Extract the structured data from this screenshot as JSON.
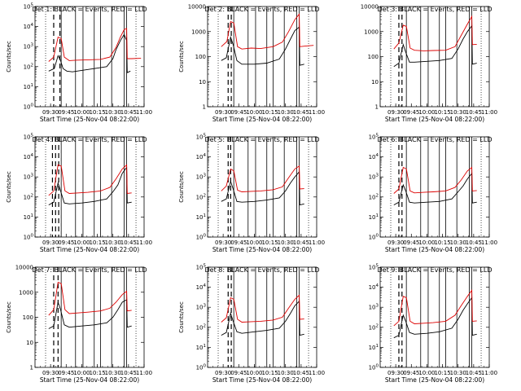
{
  "panel_grid": {
    "rows": 3,
    "cols": 3
  },
  "colors": {
    "events": "#000000",
    "lld": "#dd0000",
    "axes": "#000000",
    "background": "#ffffff"
  },
  "chart_data": [
    {
      "type": "line",
      "title": "Det 1: BLACK = Events, RED = LLD",
      "ylabel": "Counts/sec",
      "xlabel": "Start Time (25-Nov-04 08:22:00)",
      "x_ticks": [
        "09:30",
        "09:45",
        "10:00",
        "10:15",
        "10:30",
        "10:45",
        "11:00"
      ],
      "y_scale": "log",
      "y_ticks": [
        "10^0",
        "10^1",
        "10^2",
        "10^3",
        "10^4",
        "10^5"
      ],
      "ylim": [
        1,
        100000
      ],
      "grid": false,
      "vlines_dotted_hours": [
        9.42,
        10.87
      ],
      "vlines_dashed_hours": [
        9.55,
        9.65
      ],
      "vlines_solid_hours": [
        9.67,
        9.9,
        10.02,
        10.2,
        10.3,
        10.48,
        10.68,
        10.72
      ],
      "series": [
        {
          "name": "Events",
          "x_hours": [
            9.47,
            9.56,
            9.62,
            9.66,
            9.7,
            9.76,
            9.85,
            10.0,
            10.2,
            10.4,
            10.5,
            10.55,
            10.62,
            10.68,
            10.72,
            10.73,
            10.78
          ],
          "values": [
            60,
            80,
            350,
            200,
            80,
            60,
            55,
            65,
            80,
            100,
            250,
            700,
            2000,
            4000,
            2000,
            50,
            60
          ]
        },
        {
          "name": "LLD",
          "x_hours": [
            9.47,
            9.55,
            9.62,
            9.67,
            9.72,
            9.8,
            9.9,
            10.1,
            10.3,
            10.45,
            10.55,
            10.62,
            10.68,
            10.72,
            10.73,
            10.8,
            10.95
          ],
          "values": [
            180,
            300,
            3000,
            2500,
            300,
            200,
            210,
            220,
            230,
            300,
            900,
            3000,
            7000,
            8000,
            250,
            250,
            260
          ]
        }
      ]
    },
    {
      "type": "line",
      "title": "Det 2: BLACK = Events, RED = LLD",
      "ylabel": "Counts/sec",
      "xlabel": "Start Time (25-Nov-04 08:22:00)",
      "x_ticks": [
        "09:30",
        "09:45",
        "10:00",
        "10:15",
        "10:30",
        "10:45",
        "11:00"
      ],
      "y_scale": "log",
      "y_ticks": [
        "1",
        "10",
        "100",
        "1000",
        "10000"
      ],
      "ylim": [
        1,
        10000
      ],
      "grid": false,
      "vlines_dotted_hours": [
        9.42,
        10.87
      ],
      "vlines_dashed_hours": [
        9.58,
        9.63
      ],
      "vlines_solid_hours": [
        9.67,
        9.9,
        10.02,
        10.2,
        10.3,
        10.48,
        10.68,
        10.72
      ],
      "series": [
        {
          "name": "Events",
          "x_hours": [
            9.47,
            9.55,
            9.62,
            9.66,
            9.72,
            9.8,
            10.0,
            10.2,
            10.4,
            10.5,
            10.58,
            10.65,
            10.72,
            10.73,
            10.8
          ],
          "values": [
            70,
            90,
            600,
            300,
            70,
            50,
            50,
            55,
            80,
            200,
            500,
            1100,
            1500,
            45,
            50
          ]
        },
        {
          "name": "LLD",
          "x_hours": [
            9.47,
            9.56,
            9.62,
            9.67,
            9.73,
            9.8,
            9.95,
            10.1,
            10.3,
            10.45,
            10.55,
            10.65,
            10.72,
            10.73,
            10.8,
            10.95
          ],
          "values": [
            250,
            400,
            2500,
            2200,
            250,
            200,
            220,
            210,
            250,
            380,
            1000,
            3000,
            5000,
            250,
            260,
            280
          ]
        }
      ]
    },
    {
      "type": "line",
      "title": "Det 3: BLACK = Events, RED = LLD",
      "ylabel": "",
      "xlabel": "Start Time (25-Nov-04 08:22:00)",
      "x_ticks": [
        "09:30",
        "09:45",
        "10:00",
        "10:15",
        "10:30",
        "10:45",
        "11:00"
      ],
      "y_scale": "log",
      "y_ticks": [
        "1",
        "10",
        "100",
        "1000",
        "10000"
      ],
      "ylim": [
        1,
        10000
      ],
      "grid": false,
      "vlines_dotted_hours": [
        9.42,
        10.87
      ],
      "vlines_dashed_hours": [
        9.55,
        9.6
      ],
      "vlines_solid_hours": [
        9.67,
        9.9,
        10.02,
        10.2,
        10.3,
        10.48,
        10.68,
        10.72
      ],
      "series": [
        {
          "name": "Events",
          "x_hours": [
            9.47,
            9.55,
            9.62,
            9.66,
            9.72,
            9.8,
            10.0,
            10.2,
            10.4,
            10.5,
            10.58,
            10.65,
            10.72,
            10.73,
            10.8
          ],
          "values": [
            40,
            55,
            300,
            150,
            60,
            60,
            65,
            70,
            85,
            200,
            500,
            1000,
            1700,
            50,
            55
          ]
        },
        {
          "name": "LLD",
          "x_hours": [
            9.47,
            9.55,
            9.62,
            9.67,
            9.73,
            9.8,
            9.95,
            10.1,
            10.3,
            10.45,
            10.55,
            10.65,
            10.72,
            10.73,
            10.8
          ],
          "values": [
            200,
            350,
            1800,
            1600,
            220,
            180,
            170,
            175,
            180,
            250,
            700,
            2000,
            4000,
            300,
            310
          ]
        }
      ]
    },
    {
      "type": "line",
      "title": "Det 4: BLACK = Events, RED = LLD",
      "ylabel": "Counts/sec",
      "xlabel": "Start Time (25-Nov-04 08:22:00)",
      "x_ticks": [
        "09:30",
        "09:45",
        "10:00",
        "10:15",
        "10:30",
        "10:45",
        "11:00"
      ],
      "y_scale": "log",
      "y_ticks": [
        "10^0",
        "10^1",
        "10^2",
        "10^3",
        "10^4",
        "10^5"
      ],
      "ylim": [
        1,
        100000
      ],
      "grid": false,
      "vlines_dotted_hours": [
        9.42,
        10.87
      ],
      "vlines_dashed_hours": [
        9.53,
        9.58,
        9.63
      ],
      "vlines_solid_hours": [
        9.67,
        9.9,
        10.02,
        10.2,
        10.3,
        10.48,
        10.68,
        10.72
      ],
      "series": [
        {
          "name": "Events",
          "x_hours": [
            9.47,
            9.55,
            9.62,
            9.66,
            9.72,
            9.8,
            10.0,
            10.2,
            10.4,
            10.5,
            10.58,
            10.65,
            10.72,
            10.73,
            10.8
          ],
          "values": [
            40,
            55,
            500,
            200,
            50,
            45,
            50,
            60,
            80,
            180,
            400,
            1500,
            3000,
            50,
            55
          ]
        },
        {
          "name": "LLD",
          "x_hours": [
            9.47,
            9.55,
            9.62,
            9.67,
            9.73,
            9.8,
            9.95,
            10.1,
            10.3,
            10.45,
            10.55,
            10.65,
            10.72,
            10.73,
            10.8
          ],
          "values": [
            120,
            200,
            4000,
            3500,
            200,
            150,
            160,
            170,
            200,
            300,
            800,
            2500,
            4000,
            150,
            160
          ]
        }
      ]
    },
    {
      "type": "line",
      "title": "Det 5: BLACK = Events, RED = LLD",
      "ylabel": "Counts/sec",
      "xlabel": "Start Time (25-Nov-04 08:22:00)",
      "x_ticks": [
        "09:30",
        "09:45",
        "10:00",
        "10:15",
        "10:30",
        "10:45",
        "11:00"
      ],
      "y_scale": "log",
      "y_ticks": [
        "10^0",
        "10^1",
        "10^2",
        "10^3",
        "10^4",
        "10^5"
      ],
      "ylim": [
        1,
        100000
      ],
      "grid": false,
      "vlines_dotted_hours": [
        9.42,
        10.87
      ],
      "vlines_dashed_hours": [
        9.58,
        9.62
      ],
      "vlines_solid_hours": [
        9.67,
        9.9,
        10.02,
        10.2,
        10.3,
        10.48,
        10.68,
        10.72
      ],
      "series": [
        {
          "name": "Events",
          "x_hours": [
            9.47,
            9.55,
            9.62,
            9.66,
            9.72,
            9.8,
            10.0,
            10.2,
            10.4,
            10.5,
            10.58,
            10.65,
            10.72,
            10.73,
            10.8
          ],
          "values": [
            60,
            80,
            600,
            250,
            60,
            55,
            60,
            70,
            90,
            200,
            500,
            1000,
            1800,
            40,
            45
          ]
        },
        {
          "name": "LLD",
          "x_hours": [
            9.47,
            9.55,
            9.62,
            9.67,
            9.73,
            9.8,
            9.95,
            10.1,
            10.3,
            10.45,
            10.55,
            10.65,
            10.72,
            10.73,
            10.8
          ],
          "values": [
            200,
            350,
            2500,
            2000,
            220,
            180,
            190,
            200,
            230,
            320,
            900,
            2500,
            3500,
            250,
            260
          ]
        }
      ]
    },
    {
      "type": "line",
      "title": "Det 6: BLACK = Events, RED = LLD",
      "ylabel": "",
      "xlabel": "Start Time (25-Nov-04 08:22:00)",
      "x_ticks": [
        "09:30",
        "09:45",
        "10:00",
        "10:15",
        "10:30",
        "10:45",
        "11:00"
      ],
      "y_scale": "log",
      "y_ticks": [
        "10^0",
        "10^1",
        "10^2",
        "10^3",
        "10^4",
        "10^5"
      ],
      "ylim": [
        1,
        100000
      ],
      "grid": false,
      "vlines_dotted_hours": [
        9.42,
        10.87
      ],
      "vlines_dashed_hours": [
        9.55,
        9.6
      ],
      "vlines_solid_hours": [
        9.67,
        9.9,
        10.02,
        10.2,
        10.3,
        10.48,
        10.68,
        10.72
      ],
      "series": [
        {
          "name": "Events",
          "x_hours": [
            9.47,
            9.55,
            9.62,
            9.66,
            9.72,
            9.8,
            10.0,
            10.2,
            10.4,
            10.5,
            10.58,
            10.65,
            10.72,
            10.73,
            10.8
          ],
          "values": [
            40,
            55,
            400,
            200,
            55,
            50,
            55,
            60,
            80,
            180,
            350,
            800,
            1500,
            50,
            55
          ]
        },
        {
          "name": "LLD",
          "x_hours": [
            9.47,
            9.55,
            9.62,
            9.67,
            9.73,
            9.8,
            9.95,
            10.1,
            10.3,
            10.45,
            10.55,
            10.65,
            10.72,
            10.73,
            10.8
          ],
          "values": [
            150,
            250,
            3000,
            2500,
            200,
            160,
            170,
            180,
            200,
            300,
            700,
            2000,
            3000,
            200,
            210
          ]
        }
      ]
    },
    {
      "type": "line",
      "title": "Det 7: BLACK = Events, RED = LLD",
      "ylabel": "Counts/sec",
      "xlabel": "Start Time (25-Nov-04 08:22:00)",
      "x_ticks": [
        "09:30",
        "09:45",
        "10:00",
        "10:15",
        "10:30",
        "10:45",
        "11:00"
      ],
      "y_scale": "log",
      "y_ticks": [
        "1",
        "10",
        "100",
        "1000",
        "10000"
      ],
      "ylim": [
        1,
        10000
      ],
      "grid": false,
      "vlines_dotted_hours": [
        9.42,
        10.87
      ],
      "vlines_dashed_hours": [
        9.55,
        9.62
      ],
      "vlines_solid_hours": [
        9.67,
        9.9,
        10.02,
        10.2,
        10.3,
        10.48,
        10.68,
        10.72
      ],
      "series": [
        {
          "name": "Events",
          "x_hours": [
            9.47,
            9.55,
            9.62,
            9.66,
            9.72,
            9.8,
            10.0,
            10.2,
            10.4,
            10.5,
            10.58,
            10.65,
            10.72,
            10.73,
            10.8
          ],
          "values": [
            35,
            45,
            400,
            200,
            50,
            40,
            45,
            50,
            60,
            100,
            200,
            400,
            500,
            40,
            45
          ]
        },
        {
          "name": "LLD",
          "x_hours": [
            9.47,
            9.55,
            9.62,
            9.67,
            9.73,
            9.8,
            9.95,
            10.1,
            10.3,
            10.45,
            10.55,
            10.65,
            10.72,
            10.73,
            10.8
          ],
          "values": [
            120,
            200,
            2500,
            2200,
            200,
            140,
            150,
            160,
            180,
            230,
            400,
            800,
            1100,
            180,
            190
          ]
        }
      ]
    },
    {
      "type": "line",
      "title": "Det 8: BLACK = Events, RED = LLD",
      "ylabel": "Counts/sec",
      "xlabel": "Start Time (25-Nov-04 08:22:00)",
      "x_ticks": [
        "09:30",
        "09:45",
        "10:00",
        "10:15",
        "10:30",
        "10:45",
        "11:00"
      ],
      "y_scale": "log",
      "y_ticks": [
        "10^0",
        "10^1",
        "10^2",
        "10^3",
        "10^4",
        "10^5"
      ],
      "ylim": [
        1,
        100000
      ],
      "grid": false,
      "vlines_dotted_hours": [
        9.42,
        10.87
      ],
      "vlines_dashed_hours": [
        9.58,
        9.63
      ],
      "vlines_solid_hours": [
        9.67,
        9.9,
        10.02,
        10.2,
        10.3,
        10.48,
        10.68,
        10.72
      ],
      "series": [
        {
          "name": "Events",
          "x_hours": [
            9.47,
            9.55,
            9.62,
            9.66,
            9.72,
            9.8,
            10.0,
            10.2,
            10.4,
            10.5,
            10.58,
            10.65,
            10.72,
            10.73,
            10.8
          ],
          "values": [
            40,
            55,
            500,
            200,
            60,
            50,
            60,
            70,
            90,
            200,
            500,
            1200,
            2000,
            40,
            45
          ]
        },
        {
          "name": "LLD",
          "x_hours": [
            9.47,
            9.55,
            9.62,
            9.67,
            9.73,
            9.8,
            9.95,
            10.1,
            10.3,
            10.45,
            10.55,
            10.65,
            10.72,
            10.73,
            10.8
          ],
          "values": [
            180,
            300,
            3000,
            2500,
            250,
            180,
            190,
            200,
            230,
            320,
            900,
            2500,
            4000,
            250,
            260
          ]
        }
      ]
    },
    {
      "type": "line",
      "title": "Det 9: BLACK = Events, RED = LLD",
      "ylabel": "",
      "xlabel": "Start Time (25-Nov-04 08:22:00)",
      "x_ticks": [
        "09:30",
        "09:45",
        "10:00",
        "10:15",
        "10:30",
        "10:45",
        "11:00"
      ],
      "y_scale": "log",
      "y_ticks": [
        "10^0",
        "10^1",
        "10^2",
        "10^3",
        "10^4",
        "10^5"
      ],
      "ylim": [
        1,
        100000
      ],
      "grid": false,
      "vlines_dotted_hours": [
        9.42,
        10.87
      ],
      "vlines_dashed_hours": [
        9.55,
        9.6
      ],
      "vlines_solid_hours": [
        9.67,
        9.9,
        10.02,
        10.2,
        10.3,
        10.48,
        10.68,
        10.72
      ],
      "series": [
        {
          "name": "Events",
          "x_hours": [
            9.47,
            9.55,
            9.62,
            9.66,
            9.72,
            9.8,
            10.0,
            10.2,
            10.4,
            10.5,
            10.58,
            10.65,
            10.72,
            10.73,
            10.8
          ],
          "values": [
            30,
            40,
            400,
            200,
            55,
            45,
            50,
            60,
            90,
            250,
            700,
            1500,
            3000,
            40,
            45
          ]
        },
        {
          "name": "LLD",
          "x_hours": [
            9.47,
            9.55,
            9.62,
            9.67,
            9.73,
            9.8,
            9.95,
            10.1,
            10.3,
            10.45,
            10.55,
            10.65,
            10.72,
            10.73,
            10.8
          ],
          "values": [
            120,
            200,
            3500,
            3000,
            200,
            150,
            160,
            170,
            200,
            400,
            1200,
            3500,
            7000,
            200,
            210
          ]
        }
      ]
    }
  ]
}
